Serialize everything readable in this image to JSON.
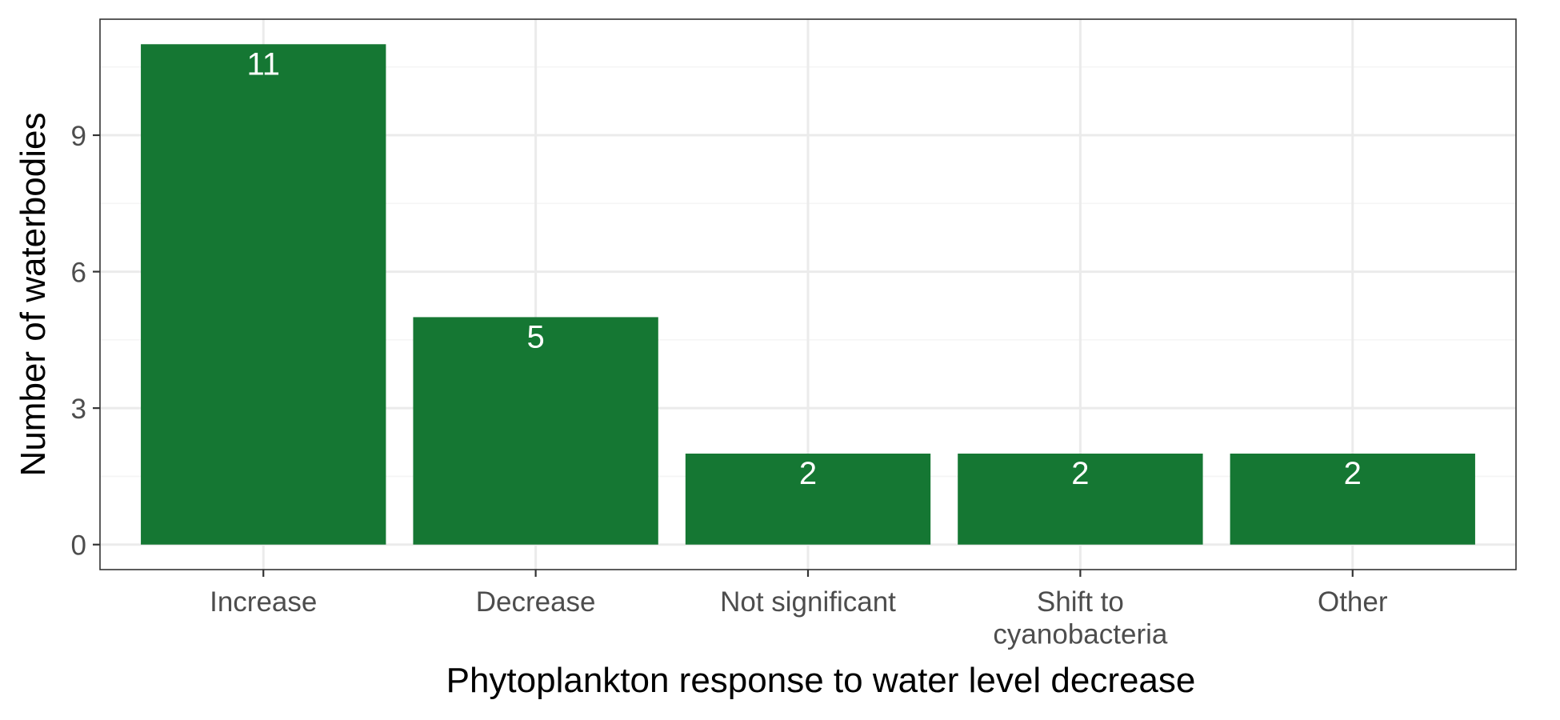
{
  "chart_data": {
    "type": "bar",
    "categories": [
      "Increase",
      "Decrease",
      "Not significant",
      "Shift to\ncyanobacteria",
      "Other"
    ],
    "values": [
      11,
      5,
      2,
      2,
      2
    ],
    "data_labels": [
      "11",
      "5",
      "2",
      "2",
      "2"
    ],
    "xlabel": "Phytoplankton response to water level decrease",
    "ylabel": "Number of waterbodies",
    "yticks": [
      0,
      3,
      6,
      9
    ],
    "ylim": [
      -0.55,
      11.55
    ],
    "grid": true,
    "legend": "none",
    "colors": {
      "bar": "#157733",
      "grid_major": "#ebebeb",
      "grid_minor": "#f5f5f5",
      "panel_border": "#333333",
      "bar_label": "#ffffff"
    }
  }
}
